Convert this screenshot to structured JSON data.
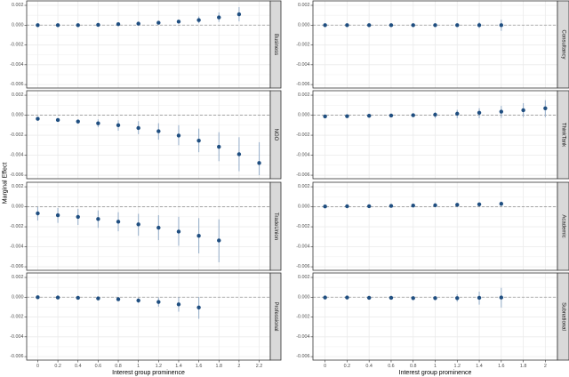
{
  "chart_data": {
    "type": "scatter",
    "subtype": "point-range (marginal effects with confidence intervals), faceted grid 4 rows x 2 columns",
    "title": "",
    "xlabel": "Interest group prominence",
    "ylabel": "Marginal Effect",
    "ylim": [
      -0.00635,
      0.00245
    ],
    "grid": true,
    "legend": null,
    "reference_line": {
      "y": 0,
      "style": "dashed"
    },
    "colors": {
      "point": "#1f4e80",
      "errorbar": "#9db3cc",
      "grid": "#ebebeb",
      "panel_border": "#333333",
      "strip_fill": "#d9d9d9",
      "zero_line": "#9a9a9a"
    },
    "y_ticks": [
      {
        "value": 0.002,
        "label": "0.002"
      },
      {
        "value": 0.0,
        "label": "0.000"
      },
      {
        "value": -0.002,
        "label": "-0.002"
      },
      {
        "value": -0.004,
        "label": "-0.004"
      },
      {
        "value": -0.006,
        "label": "-0.006"
      }
    ],
    "y_minor": [
      0.001,
      -0.001,
      -0.003,
      -0.005
    ],
    "columns": [
      {
        "xlim": [
          -0.11,
          2.31
        ],
        "x_ticks": [
          {
            "value": 0,
            "label": "0"
          },
          {
            "value": 0.2,
            "label": "0.2"
          },
          {
            "value": 0.4,
            "label": "0.4"
          },
          {
            "value": 0.6,
            "label": "0.6"
          },
          {
            "value": 0.8,
            "label": "0.8"
          },
          {
            "value": 1,
            "label": "1"
          },
          {
            "value": 1.2,
            "label": "1.2"
          },
          {
            "value": 1.4,
            "label": "1.4"
          },
          {
            "value": 1.6,
            "label": "1.6"
          },
          {
            "value": 1.8,
            "label": "1.8"
          },
          {
            "value": 2,
            "label": "2"
          },
          {
            "value": 2.2,
            "label": "2.2"
          }
        ]
      },
      {
        "xlim": [
          -0.11,
          2.11
        ],
        "x_ticks": [
          {
            "value": 0,
            "label": "0"
          },
          {
            "value": 0.2,
            "label": "0.2"
          },
          {
            "value": 0.4,
            "label": "0.4"
          },
          {
            "value": 0.6,
            "label": "0.6"
          },
          {
            "value": 0.8,
            "label": "0.8"
          },
          {
            "value": 1,
            "label": "1"
          },
          {
            "value": 1.2,
            "label": "1.2"
          },
          {
            "value": 1.4,
            "label": "1.4"
          },
          {
            "value": 1.6,
            "label": "1.6"
          },
          {
            "value": 1.8,
            "label": "1.8"
          },
          {
            "value": 2,
            "label": "2"
          }
        ]
      }
    ],
    "panels": [
      {
        "name": "Business",
        "column": 0,
        "row": 0,
        "x": [
          0,
          0.2,
          0.4,
          0.6,
          0.8,
          1,
          1.2,
          1.4,
          1.6,
          1.8,
          2
        ],
        "y": [
          0,
          0,
          0,
          3e-05,
          0.0001,
          0.00015,
          0.00024,
          0.00036,
          0.00051,
          0.00078,
          0.0011
        ],
        "lower": [
          -2e-05,
          -2e-05,
          -2e-05,
          0.0,
          5e-05,
          8e-05,
          0.00013,
          0.0002,
          0.0002,
          0.00033,
          0.00039
        ],
        "upper": [
          2e-05,
          2e-05,
          2e-05,
          6e-05,
          0.00015,
          0.00022,
          0.00035,
          0.00052,
          0.00087,
          0.00128,
          0.00182
        ]
      },
      {
        "name": "NGO",
        "column": 0,
        "row": 1,
        "x": [
          0,
          0.2,
          0.4,
          0.6,
          0.8,
          1,
          1.2,
          1.4,
          1.6,
          1.8,
          2,
          2.2
        ],
        "y": [
          -0.00036,
          -0.00048,
          -0.00063,
          -0.00081,
          -0.001,
          -0.00128,
          -0.0016,
          -0.00203,
          -0.00254,
          -0.00316,
          -0.0039,
          -0.00478
        ],
        "lower": [
          -0.00046,
          -0.00062,
          -0.00085,
          -0.0012,
          -0.00155,
          -0.0019,
          -0.00245,
          -0.003,
          -0.0037,
          -0.0046,
          -0.0056,
          -0.006
        ],
        "upper": [
          -0.00026,
          -0.00034,
          -0.00041,
          -0.00042,
          -0.0005,
          -0.0006,
          -0.0008,
          -0.001,
          -0.00134,
          -0.0017,
          -0.0022,
          -0.0027
        ]
      },
      {
        "name": "TradeUnion",
        "column": 0,
        "row": 2,
        "x": [
          0,
          0.2,
          0.4,
          0.6,
          0.8,
          1,
          1.2,
          1.4,
          1.6,
          1.8
        ],
        "y": [
          -0.00066,
          -0.00084,
          -0.00101,
          -0.00122,
          -0.00149,
          -0.00176,
          -0.00209,
          -0.00248,
          -0.0029,
          -0.00337
        ],
        "lower": [
          -0.00137,
          -0.00161,
          -0.00182,
          -0.0021,
          -0.00245,
          -0.0029,
          -0.00334,
          -0.0039,
          -0.00466,
          -0.00555
        ],
        "upper": [
          -3e-05,
          -0.00012,
          -0.0002,
          -0.00036,
          -0.00054,
          -0.0007,
          -0.00084,
          -0.001,
          -0.00113,
          -0.00125
        ]
      },
      {
        "name": "Professional",
        "column": 0,
        "row": 3,
        "x": [
          0,
          0.2,
          0.4,
          0.6,
          0.8,
          1,
          1.2,
          1.4,
          1.6
        ],
        "y": [
          0,
          -3e-05,
          -6e-05,
          -0.00012,
          -0.0002,
          -0.00033,
          -0.00048,
          -0.00072,
          -0.00104
        ],
        "lower": [
          -3e-05,
          -6e-05,
          -0.0001,
          -0.00018,
          -0.00032,
          -0.00058,
          -0.00095,
          -0.00146,
          -0.00218
        ],
        "upper": [
          3e-05,
          0.0,
          -2e-05,
          -5e-05,
          -8e-05,
          -8e-05,
          -1e-05,
          0.0,
          3e-05
        ]
      },
      {
        "name": "Consultancy",
        "column": 1,
        "row": 0,
        "x": [
          0,
          0.2,
          0.4,
          0.6,
          0.8,
          1,
          1.2,
          1.4,
          1.6
        ],
        "y": [
          0,
          0,
          0,
          0,
          0,
          0,
          0,
          0,
          0
        ],
        "lower": [
          -2e-05,
          -2e-05,
          -2e-05,
          -3e-05,
          -4e-05,
          -6e-05,
          -0.0001,
          -0.0003,
          -0.00058
        ],
        "upper": [
          2e-05,
          2e-05,
          2e-05,
          3e-05,
          4e-05,
          6e-05,
          0.0001,
          0.0003,
          0.00055
        ]
      },
      {
        "name": "ThinkTank",
        "column": 1,
        "row": 1,
        "x": [
          0,
          0.2,
          0.4,
          0.6,
          0.8,
          1,
          1.2,
          1.4,
          1.6,
          1.8,
          2
        ],
        "y": [
          -0.00012,
          -0.0001,
          -6e-05,
          -3e-05,
          0,
          6e-05,
          0.00015,
          0.00024,
          0.00036,
          0.0005,
          0.00069
        ],
        "lower": [
          -0.00022,
          -0.0002,
          -0.00018,
          -0.00017,
          -0.00018,
          -0.0003,
          -0.0003,
          -0.0003,
          -0.00027,
          -0.0002,
          -0.0002
        ],
        "upper": [
          -2e-05,
          0.0,
          6e-05,
          0.00011,
          0.00018,
          0.0003,
          0.00054,
          0.0007,
          0.00093,
          0.0012,
          0.0015
        ]
      },
      {
        "name": "Academic",
        "column": 1,
        "row": 2,
        "x": [
          0,
          0.2,
          0.4,
          0.6,
          0.8,
          1,
          1.2,
          1.4,
          1.6
        ],
        "y": [
          3e-05,
          5e-05,
          6e-05,
          9e-05,
          0.00012,
          0.00015,
          0.0002,
          0.00024,
          0.0003
        ],
        "lower": [
          1e-05,
          2e-05,
          2e-05,
          4e-05,
          6e-05,
          8e-05,
          0.0001,
          0.00012,
          3e-05
        ],
        "upper": [
          5e-05,
          8e-05,
          0.0001,
          0.00014,
          0.00018,
          0.00022,
          0.0003,
          0.00038,
          0.00054
        ]
      },
      {
        "name": "Subnational",
        "column": 1,
        "row": 3,
        "x": [
          0,
          0.2,
          0.4,
          0.6,
          0.8,
          1,
          1.2,
          1.4,
          1.6
        ],
        "y": [
          -3e-05,
          -3e-05,
          -6e-05,
          -6e-05,
          -9e-05,
          -9e-05,
          -9e-05,
          -6e-05,
          -3e-05
        ],
        "lower": [
          -6e-05,
          -7e-05,
          -0.0001,
          -0.00012,
          -0.00018,
          -0.0003,
          -0.00045,
          -0.00075,
          -0.00104
        ],
        "upper": [
          0.0,
          1e-05,
          -2e-05,
          0.0,
          2e-05,
          0.0001,
          0.0003,
          0.00057,
          0.00095
        ]
      }
    ]
  }
}
